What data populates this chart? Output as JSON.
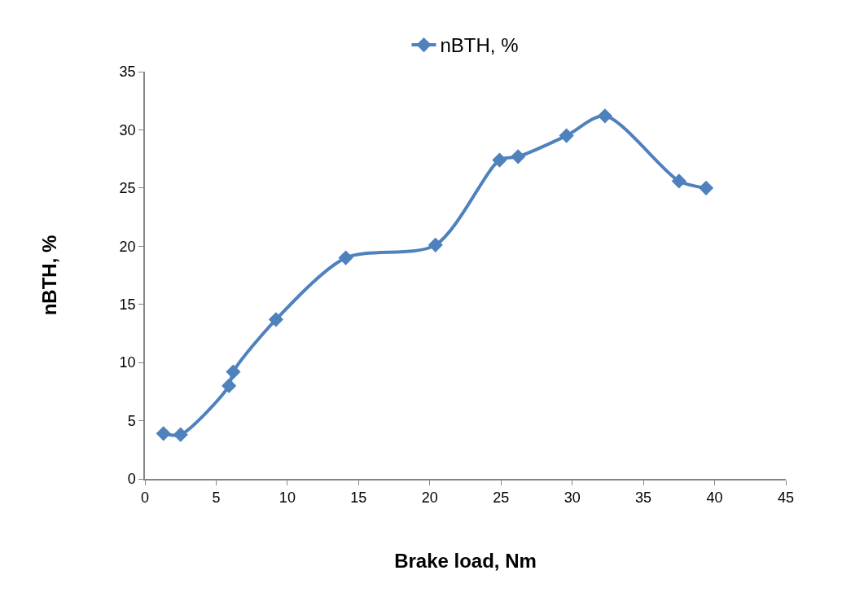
{
  "chart_data": {
    "type": "line",
    "xlabel": "Brake load, Nm",
    "ylabel": "nBTH, %",
    "x": [
      1.3,
      2.5,
      5.9,
      6.2,
      9.2,
      14.1,
      20.4,
      24.9,
      26.2,
      29.6,
      32.3,
      37.5,
      39.4
    ],
    "series": [
      {
        "name": "nBTH, %",
        "color": "#4f81bd",
        "values": [
          3.9,
          3.8,
          8.0,
          9.2,
          13.7,
          19.0,
          20.1,
          27.4,
          27.7,
          29.5,
          31.2,
          25.6,
          25.0
        ]
      }
    ],
    "xlim": [
      0,
      45
    ],
    "xticks": [
      0,
      5,
      10,
      15,
      20,
      25,
      30,
      35,
      40,
      45
    ],
    "ylim": [
      0,
      35
    ],
    "yticks": [
      0,
      5,
      10,
      15,
      20,
      25,
      30,
      35
    ],
    "legend": "top",
    "marker": "diamond",
    "line_style": "solid"
  }
}
